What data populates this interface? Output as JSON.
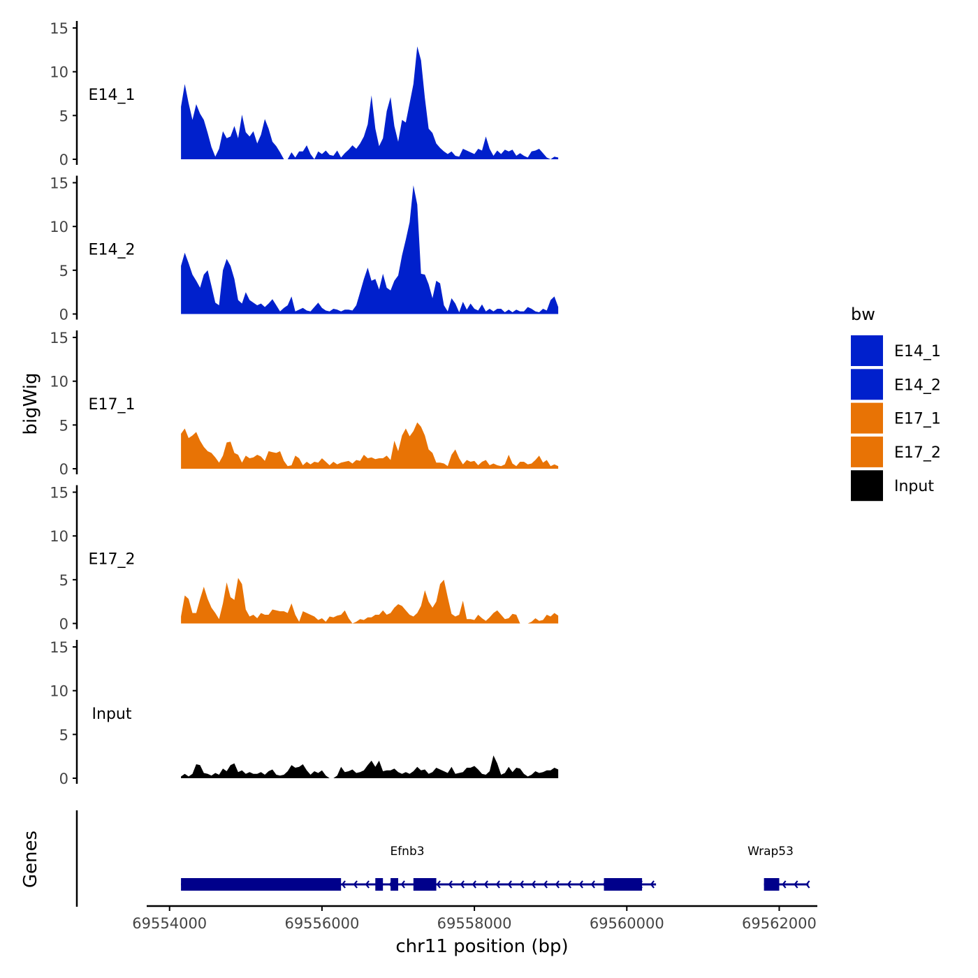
{
  "chart_data": {
    "type": "area",
    "ylabel": "bigWig",
    "genes_label": "Genes",
    "xlabel": "chr11 position (bp)",
    "xlim": [
      69553700,
      69562500
    ],
    "ylim": [
      0,
      15
    ],
    "y_ticks": [
      "15",
      "10",
      "5",
      "0"
    ],
    "x_ticks": [
      {
        "label": "69554000",
        "value": 69554000
      },
      {
        "label": "69556000",
        "value": 69556000
      },
      {
        "label": "69558000",
        "value": 69558000
      },
      {
        "label": "69560000",
        "value": 69560000
      },
      {
        "label": "69562000",
        "value": 69562000
      }
    ],
    "legend": {
      "title": "bw",
      "entries": [
        {
          "label": "E14_1",
          "color": "#0020CC"
        },
        {
          "label": "E14_2",
          "color": "#0020CC"
        },
        {
          "label": "E17_1",
          "color": "#E87305"
        },
        {
          "label": "E17_2",
          "color": "#E87305"
        },
        {
          "label": "Input",
          "color": "#000000"
        }
      ]
    },
    "x_start": 69554150,
    "x_step": 50,
    "series": [
      {
        "name": "E14_1",
        "color": "#0020CC",
        "values": [
          6.0,
          8.6,
          6.4,
          4.5,
          6.3,
          5.2,
          4.5,
          3.0,
          1.4,
          0.3,
          1.2,
          3.2,
          2.4,
          2.6,
          3.8,
          2.4,
          5.1,
          3.1,
          2.6,
          3.2,
          1.8,
          2.8,
          4.6,
          3.5,
          2.0,
          1.5,
          0.8,
          0,
          0,
          0.8,
          0.2,
          0.9,
          0.9,
          1.6,
          0.6,
          0,
          0.9,
          0.6,
          1.0,
          0.5,
          0.4,
          1.0,
          0.2,
          0.7,
          1.1,
          1.6,
          1.2,
          1.8,
          2.6,
          4.0,
          7.3,
          3.5,
          1.5,
          2.4,
          5.5,
          7.1,
          3.8,
          2.0,
          4.5,
          4.2,
          6.4,
          8.6,
          12.9,
          11.3,
          7.0,
          3.5,
          3.0,
          1.8,
          1.3,
          0.9,
          0.6,
          0.9,
          0.4,
          0.3,
          1.2,
          1.0,
          0.8,
          0.6,
          1.2,
          1.0,
          2.6,
          1.2,
          0.4,
          1.0,
          0.6,
          1.1,
          0.9,
          1.1,
          0.4,
          0.7,
          0.4,
          0.2,
          0.9,
          1.0,
          1.2,
          0.7,
          0.2,
          0,
          0.3,
          0.2
        ]
      },
      {
        "name": "E14_2",
        "color": "#0020CC",
        "values": [
          5.5,
          7.0,
          5.8,
          4.5,
          3.8,
          3.0,
          4.5,
          5.0,
          3.2,
          1.3,
          1.0,
          5.0,
          6.3,
          5.5,
          4.0,
          1.6,
          1.2,
          2.5,
          1.6,
          1.3,
          1.0,
          1.2,
          0.8,
          1.2,
          1.7,
          1.0,
          0.3,
          0.7,
          1.0,
          2.0,
          0.3,
          0.5,
          0.7,
          0.4,
          0.3,
          0.8,
          1.3,
          0.7,
          0.4,
          0.3,
          0.6,
          0.5,
          0.3,
          0.5,
          0.5,
          0.4,
          1.0,
          2.5,
          4.0,
          5.3,
          3.8,
          4.0,
          2.8,
          4.6,
          3.0,
          2.7,
          3.8,
          4.4,
          6.7,
          8.5,
          10.5,
          14.7,
          12.5,
          4.6,
          4.5,
          3.4,
          1.8,
          3.8,
          3.5,
          1.0,
          0.3,
          1.8,
          1.2,
          0.2,
          1.4,
          0.5,
          1.2,
          0.6,
          0.4,
          1.1,
          0.3,
          0.6,
          0.3,
          0.6,
          0.6,
          0.2,
          0.5,
          0.2,
          0.5,
          0.3,
          0.3,
          0.8,
          0.6,
          0.3,
          0.2,
          0.6,
          0.4,
          1.6,
          2.0,
          0.8
        ]
      },
      {
        "name": "E17_1",
        "color": "#E87305",
        "values": [
          4.0,
          4.6,
          3.5,
          3.8,
          4.2,
          3.2,
          2.5,
          2.0,
          1.8,
          1.3,
          0.7,
          1.5,
          3.0,
          3.1,
          1.8,
          1.6,
          0.7,
          1.5,
          1.2,
          1.3,
          1.6,
          1.4,
          0.9,
          2.0,
          1.9,
          1.8,
          2.0,
          0.9,
          0.3,
          0.4,
          1.5,
          1.2,
          0.4,
          0.8,
          0.5,
          0.8,
          0.7,
          1.2,
          0.8,
          0.4,
          0.8,
          0.5,
          0.7,
          0.8,
          0.9,
          0.6,
          1.0,
          0.9,
          1.6,
          1.2,
          1.3,
          1.1,
          1.2,
          1.2,
          1.5,
          1.0,
          3.2,
          2.0,
          3.8,
          4.6,
          3.7,
          4.3,
          5.3,
          4.8,
          3.8,
          2.2,
          1.8,
          0.7,
          0.7,
          0.6,
          0.3,
          1.6,
          2.2,
          1.2,
          0.5,
          1.0,
          0.8,
          0.9,
          0.4,
          0.8,
          1.0,
          0.4,
          0.6,
          0.4,
          0.3,
          0.5,
          1.6,
          0.6,
          0.3,
          0.8,
          0.8,
          0.5,
          0.6,
          1.0,
          1.5,
          0.7,
          1.0,
          0.3,
          0.5,
          0.3
        ]
      },
      {
        "name": "E17_2",
        "color": "#E87305",
        "values": [
          0.8,
          3.2,
          2.8,
          1.2,
          1.2,
          2.8,
          4.2,
          2.8,
          1.8,
          1.2,
          0.5,
          2.3,
          4.7,
          3.0,
          2.7,
          5.2,
          4.5,
          1.6,
          0.8,
          1.0,
          0.6,
          1.2,
          1.0,
          1.0,
          1.6,
          1.5,
          1.4,
          1.4,
          1.2,
          2.3,
          1.0,
          0.2,
          1.4,
          1.2,
          1.0,
          0.8,
          0.4,
          0.6,
          0.2,
          0.8,
          0.7,
          0.9,
          1.0,
          1.5,
          0.6,
          0,
          0.2,
          0.5,
          0.4,
          0.7,
          0.7,
          1.0,
          1.0,
          1.5,
          1.0,
          1.2,
          1.8,
          2.2,
          2.0,
          1.5,
          1.0,
          0.8,
          1.2,
          2.0,
          3.8,
          2.5,
          1.8,
          2.5,
          4.5,
          5.0,
          3.0,
          1.1,
          0.8,
          1.0,
          2.6,
          0.5,
          0.5,
          0.4,
          1.0,
          0.6,
          0.3,
          0.7,
          1.2,
          1.5,
          1.0,
          0.5,
          0.6,
          1.1,
          1.0,
          0,
          0,
          0,
          0.2,
          0.6,
          0.3,
          0.4,
          1.0,
          0.8,
          1.2,
          0.9
        ]
      },
      {
        "name": "Input",
        "color": "#000000",
        "values": [
          0.2,
          0.5,
          0.2,
          0.5,
          1.6,
          1.5,
          0.6,
          0.5,
          0.3,
          0.6,
          0.4,
          1.1,
          0.8,
          1.5,
          1.7,
          0.7,
          0.9,
          0.5,
          0.7,
          0.5,
          0.5,
          0.7,
          0.4,
          0.8,
          1.0,
          0.4,
          0.3,
          0.4,
          0.8,
          1.5,
          1.2,
          1.3,
          1.6,
          0.9,
          0.4,
          0.8,
          0.6,
          0.9,
          0.3,
          0,
          0,
          0.3,
          1.3,
          0.7,
          0.8,
          1.0,
          0.6,
          0.7,
          0.9,
          1.5,
          2.0,
          1.3,
          2.0,
          0.8,
          0.9,
          0.9,
          1.1,
          0.7,
          0.5,
          0.7,
          0.5,
          0.8,
          1.3,
          0.9,
          1.0,
          0.5,
          0.7,
          1.2,
          1.0,
          0.8,
          0.6,
          1.3,
          0.5,
          0.6,
          0.7,
          1.2,
          1.2,
          1.4,
          1.0,
          0.5,
          0.4,
          0.8,
          2.6,
          1.7,
          0.4,
          0.6,
          1.3,
          0.7,
          1.2,
          1.1,
          0.5,
          0.2,
          0.4,
          0.8,
          0.6,
          0.7,
          0.9,
          0.9,
          1.2,
          1.0
        ]
      }
    ],
    "genes": [
      {
        "name": "Efnb3",
        "start": 69554150,
        "end": 69560200,
        "strand": "-",
        "exons": [
          [
            69554150,
            69556250
          ],
          [
            69556700,
            69556800
          ],
          [
            69556900,
            69557000
          ],
          [
            69557200,
            69557500
          ],
          [
            69559700,
            69560200
          ]
        ]
      },
      {
        "name": "Wrap53",
        "start": 69561800,
        "end": 69562200,
        "strand": "-",
        "exons": [
          [
            69561800,
            69562000
          ]
        ]
      }
    ]
  }
}
